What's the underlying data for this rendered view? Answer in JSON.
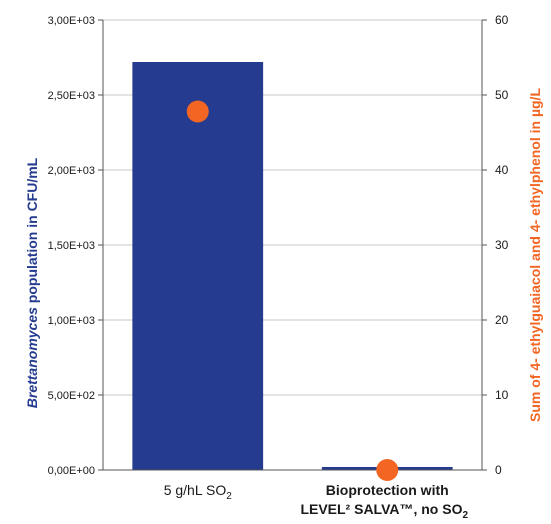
{
  "colors": {
    "bar": "#243b8f",
    "point": "#f26522",
    "left_axis_title": "#243b8f",
    "right_axis_title": "#f26522",
    "grid": "#c8c8c8",
    "axis": "#555555"
  },
  "chart_data": {
    "type": "bar",
    "categories": [
      [
        "5 g/hL SO",
        "2",
        ""
      ],
      [
        "Bioprotection with",
        "LEVEL² SALVA™, no SO",
        "2"
      ]
    ],
    "series": [
      {
        "type": "bar",
        "axis": "left",
        "values": [
          2720,
          20
        ]
      },
      {
        "type": "scatter",
        "axis": "right",
        "values": [
          47.8,
          0
        ]
      }
    ],
    "ylabel_left": {
      "italic": "Brettanomyces",
      "rest": " population in CFU/mL"
    },
    "ylabel_right": "Sum of 4- ethylguaiacol and 4- ethylphenol in µg/L",
    "ylim_left": [
      0,
      3000
    ],
    "ylim_right": [
      0,
      60
    ],
    "yticks_left": [
      "0,00E+00",
      "5,00E+02",
      "1,00E+03",
      "1,50E+03",
      "2,00E+03",
      "2,50E+03",
      "3,00E+03"
    ],
    "yticks_right": [
      "0",
      "10",
      "20",
      "30",
      "40",
      "50",
      "60"
    ],
    "grid": true,
    "legend": false
  }
}
